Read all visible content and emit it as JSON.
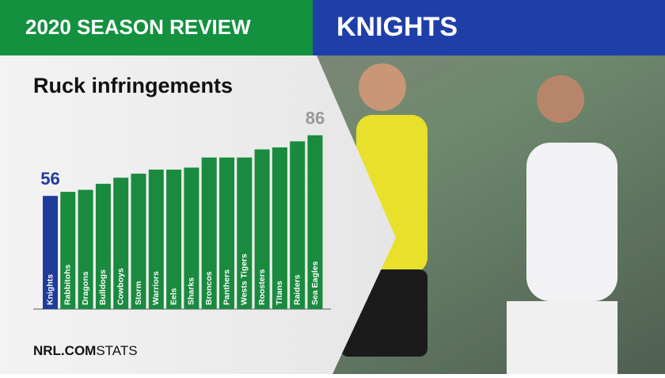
{
  "header": {
    "title": "2020 SEASON REVIEW",
    "team": "KNIGHTS"
  },
  "chart_data": {
    "type": "bar",
    "title": "Ruck infringements",
    "categories": [
      "Knights",
      "Rabbitohs",
      "Dragons",
      "Bulldogs",
      "Cowboys",
      "Storm",
      "Warriors",
      "Eels",
      "Sharks",
      "Broncos",
      "Panthers",
      "Wests Tigers",
      "Roosters",
      "Titans",
      "Raiders",
      "Sea Eagles"
    ],
    "values": [
      56,
      58,
      59,
      62,
      65,
      67,
      69,
      69,
      70,
      75,
      75,
      75,
      79,
      80,
      83,
      86
    ],
    "colors": [
      "#1f3c9a",
      "#1a8a3f",
      "#1a8a3f",
      "#1a8a3f",
      "#1a8a3f",
      "#1a8a3f",
      "#1a8a3f",
      "#1a8a3f",
      "#1a8a3f",
      "#1a8a3f",
      "#1a8a3f",
      "#1a8a3f",
      "#1a8a3f",
      "#1a8a3f",
      "#1a8a3f",
      "#1a8a3f"
    ],
    "labeled": [
      0,
      15
    ]
  },
  "footer": {
    "brand": "NRL.COM",
    "section": "STATS"
  }
}
